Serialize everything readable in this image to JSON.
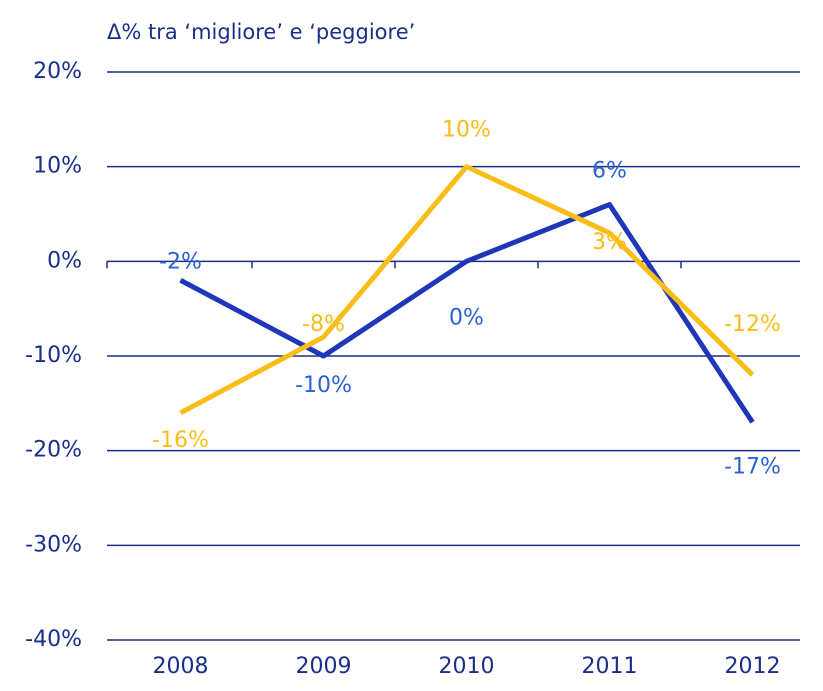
{
  "chart_data": {
    "type": "line",
    "title": "Δ% tra ‘migliore’ e ‘peggiore’",
    "categories": [
      "2008",
      "2009",
      "2010",
      "2011",
      "2012"
    ],
    "series": [
      {
        "color": "#1f36b8",
        "values": [
          -2,
          -10,
          0,
          6,
          -17
        ],
        "value_labels": [
          "-2%",
          "-10%",
          "0%",
          "6%",
          "-17%"
        ]
      },
      {
        "color": "#f8bd16",
        "values": [
          -16,
          -8,
          10,
          3,
          -12
        ],
        "value_labels": [
          "-16%",
          "-8%",
          "10%",
          "3%",
          "-12%"
        ]
      }
    ],
    "ylim": [
      -40,
      20
    ],
    "yticks": [
      {
        "value": -40,
        "label": "-40%"
      },
      {
        "value": -30,
        "label": "-30%"
      },
      {
        "value": -20,
        "label": "-20%"
      },
      {
        "value": -10,
        "label": "-10%"
      },
      {
        "value": 0,
        "label": "0%"
      },
      {
        "value": 10,
        "label": "10%"
      },
      {
        "value": 20,
        "label": "20%"
      }
    ],
    "grid": true
  }
}
